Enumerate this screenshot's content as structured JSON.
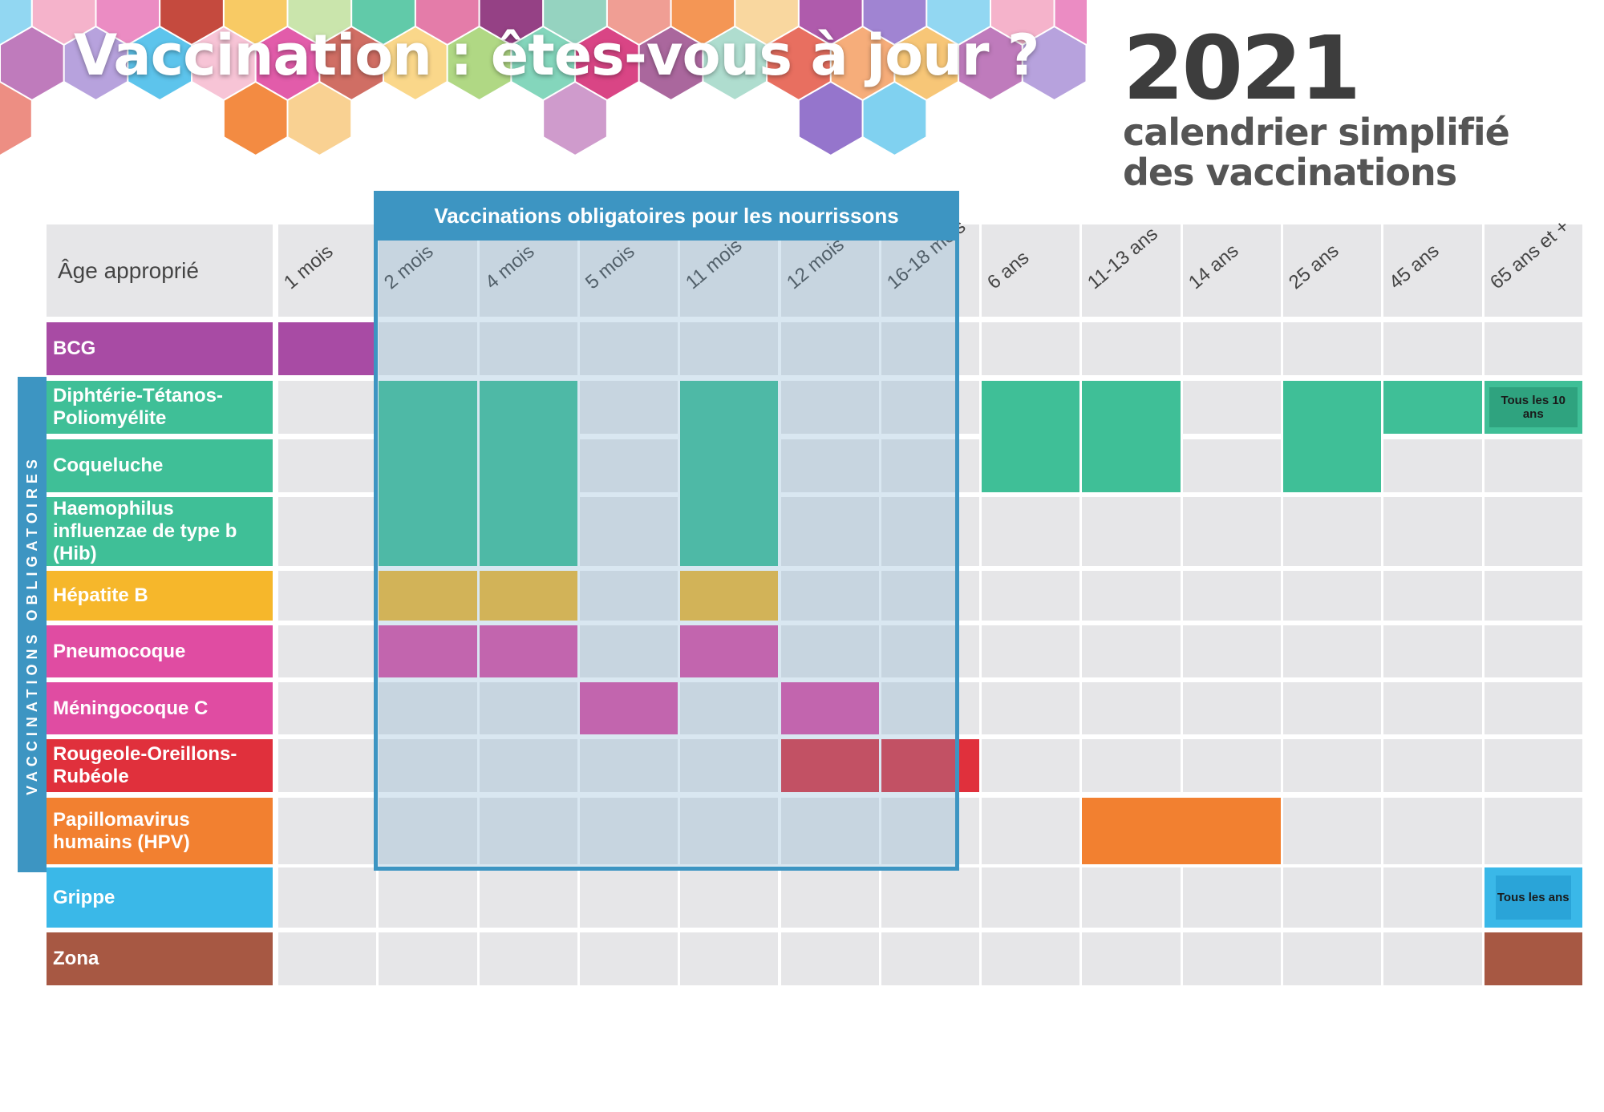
{
  "header": {
    "title": "Vaccination : êtes-vous à jour ?",
    "year": "2021",
    "subtitle_line1": "calendrier simplifié",
    "subtitle_line2": "des vaccinations"
  },
  "table": {
    "age_header": "Âge approprié",
    "mandatory_infant_header": "Vaccinations obligatoires pour les nourrissons",
    "mandatory_side_label": "VACCINATIONS OBLIGATOIRES",
    "ages": [
      "1 mois",
      "2 mois",
      "4 mois",
      "5 mois",
      "11 mois",
      "12 mois",
      "16-18 mois",
      "6 ans",
      "11-13 ans",
      "14 ans",
      "25 ans",
      "45 ans",
      "65 ans et +"
    ],
    "vaccines": [
      {
        "label": "BCG",
        "color": "#a84ba4"
      },
      {
        "label": "Diphtérie-Tétanos-Poliomyélite",
        "color": "#3fbf97"
      },
      {
        "label": "Coqueluche",
        "color": "#3fbf97"
      },
      {
        "label": "Haemophilus influenzae de type b (Hib)",
        "color": "#3fbf97"
      },
      {
        "label": "Hépatite B",
        "color": "#f6b72b"
      },
      {
        "label": "Pneumocoque",
        "color": "#e04ca2"
      },
      {
        "label": "Méningocoque C",
        "color": "#e04ca2"
      },
      {
        "label": "Rougeole-Oreillons-Rubéole",
        "color": "#e0303c"
      },
      {
        "label": "Papillomavirus humains (HPV)",
        "color": "#f28030"
      },
      {
        "label": "Grippe",
        "color": "#3ab8e8"
      },
      {
        "label": "Zona",
        "color": "#a75843"
      }
    ],
    "notes": {
      "dtp_65": "Tous les 10 ans",
      "grippe_65": "Tous les ans"
    }
  }
}
